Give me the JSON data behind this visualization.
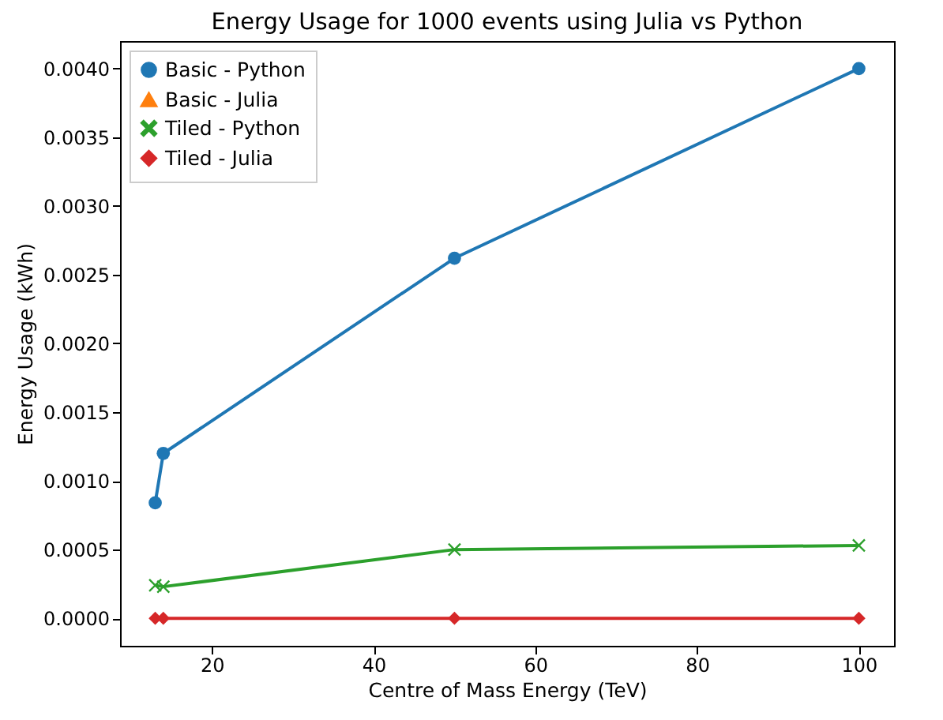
{
  "chart_data": {
    "type": "line",
    "title": "Energy Usage for 1000 events using Julia vs Python",
    "xlabel": "Centre of Mass Energy (TeV)",
    "ylabel": "Energy Usage (kWh)",
    "x": [
      13,
      14,
      50,
      100
    ],
    "series": [
      {
        "name": "Basic - Python",
        "color": "#1f77b4",
        "marker": "circle",
        "values": [
          0.00084,
          0.0012,
          0.00262,
          0.004
        ]
      },
      {
        "name": "Basic - Julia",
        "color": "#ff7f0e",
        "marker": "triangle",
        "values": [
          null,
          null,
          null,
          null
        ]
      },
      {
        "name": "Tiled - Python",
        "color": "#2ca02c",
        "marker": "cross",
        "values": [
          0.00024,
          0.00023,
          0.0005,
          0.00053
        ]
      },
      {
        "name": "Tiled - Julia",
        "color": "#d62728",
        "marker": "diamond",
        "values": [
          0,
          0,
          0,
          0
        ]
      }
    ],
    "xlim": [
      8.65,
      104.35
    ],
    "xticks": [
      20,
      40,
      60,
      80,
      100
    ],
    "ylim": [
      -0.0002,
      0.0042
    ],
    "yticks": [
      {
        "value": 0,
        "label": "0.0000"
      },
      {
        "value": 0.0005,
        "label": "0.0005"
      },
      {
        "value": 0.001,
        "label": "0.0010"
      },
      {
        "value": 0.0015,
        "label": "0.0015"
      },
      {
        "value": 0.002,
        "label": "0.0020"
      },
      {
        "value": 0.0025,
        "label": "0.0025"
      },
      {
        "value": 0.003,
        "label": "0.0030"
      },
      {
        "value": 0.0035,
        "label": "0.0035"
      },
      {
        "value": 0.004,
        "label": "0.0040"
      }
    ],
    "legend": "top left",
    "grid": false,
    "line_style": "solid"
  }
}
